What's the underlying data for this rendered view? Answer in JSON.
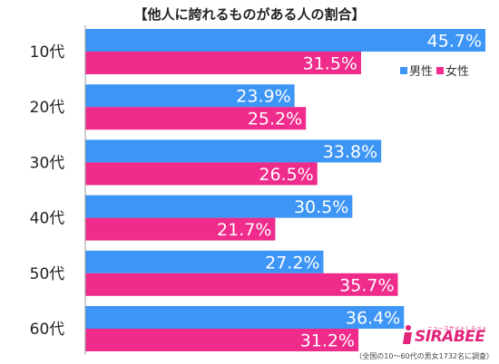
{
  "chart_data": {
    "type": "bar",
    "title": "【他人に誇れるものがある人の割合】",
    "orientation": "horizontal",
    "categories": [
      "10代",
      "20代",
      "30代",
      "40代",
      "50代",
      "60代"
    ],
    "series": [
      {
        "name": "男性",
        "color": "#3d95f5",
        "values": [
          45.7,
          23.9,
          33.8,
          30.5,
          27.2,
          36.4
        ]
      },
      {
        "name": "女性",
        "color": "#ef2b8b",
        "values": [
          31.5,
          25.2,
          26.5,
          21.7,
          35.7,
          31.2
        ]
      }
    ],
    "value_suffix": "%",
    "xlim": [
      0,
      50
    ],
    "grid": false,
    "legend_position": "top-right"
  },
  "footnote": "（全国の10〜60代の男女1732名に調査）",
  "logo": {
    "text": "SIRABEE",
    "subtext": "ニュースサイトしらべぇ"
  }
}
